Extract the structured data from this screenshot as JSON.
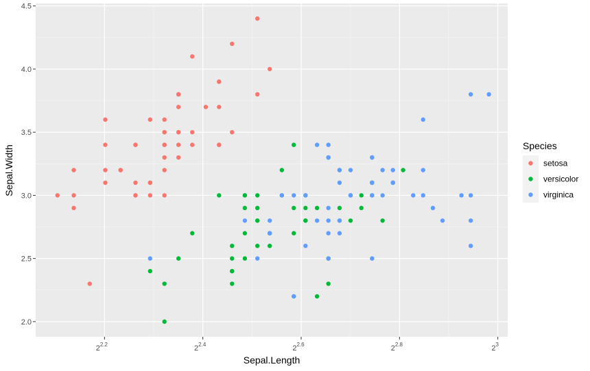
{
  "chart_data": {
    "type": "scatter",
    "title": "",
    "xlabel": "Sepal.Length",
    "ylabel": "Sepal.Width",
    "x_scale": "log2",
    "x_tick_labels": [
      {
        "base": "2",
        "exp": "2.2",
        "value": 2.2
      },
      {
        "base": "2",
        "exp": "2.4",
        "value": 2.4
      },
      {
        "base": "2",
        "exp": "2.6",
        "value": 2.6
      },
      {
        "base": "2",
        "exp": "2.8",
        "value": 2.8
      },
      {
        "base": "2",
        "exp": "3",
        "value": 3.0
      }
    ],
    "xlim_log2": [
      2.06,
      3.02
    ],
    "y_ticks": [
      "2.0",
      "2.5",
      "3.0",
      "3.5",
      "4.0",
      "4.5"
    ],
    "ylim": [
      1.88,
      4.52
    ],
    "grid": true,
    "legend": {
      "title": "Species",
      "position": "right"
    },
    "series": [
      {
        "name": "setosa",
        "color": "#F8766D",
        "points": [
          [
            5.1,
            3.5
          ],
          [
            4.9,
            3.0
          ],
          [
            4.7,
            3.2
          ],
          [
            4.6,
            3.1
          ],
          [
            5.0,
            3.6
          ],
          [
            5.4,
            3.9
          ],
          [
            4.6,
            3.4
          ],
          [
            5.0,
            3.4
          ],
          [
            4.4,
            2.9
          ],
          [
            4.9,
            3.1
          ],
          [
            5.4,
            3.7
          ],
          [
            4.8,
            3.4
          ],
          [
            4.8,
            3.0
          ],
          [
            4.3,
            3.0
          ],
          [
            5.8,
            4.0
          ],
          [
            5.7,
            4.4
          ],
          [
            5.4,
            3.9
          ],
          [
            5.1,
            3.5
          ],
          [
            5.7,
            3.8
          ],
          [
            5.1,
            3.8
          ],
          [
            5.4,
            3.4
          ],
          [
            5.1,
            3.7
          ],
          [
            4.6,
            3.6
          ],
          [
            5.1,
            3.3
          ],
          [
            4.8,
            3.4
          ],
          [
            5.0,
            3.0
          ],
          [
            5.0,
            3.4
          ],
          [
            5.2,
            3.5
          ],
          [
            5.2,
            3.4
          ],
          [
            4.7,
            3.2
          ],
          [
            4.8,
            3.1
          ],
          [
            5.4,
            3.4
          ],
          [
            5.2,
            4.1
          ],
          [
            5.5,
            4.2
          ],
          [
            4.9,
            3.1
          ],
          [
            5.0,
            3.2
          ],
          [
            5.5,
            3.5
          ],
          [
            4.9,
            3.6
          ],
          [
            4.4,
            3.0
          ],
          [
            5.1,
            3.4
          ],
          [
            5.0,
            3.5
          ],
          [
            4.5,
            2.3
          ],
          [
            4.4,
            3.2
          ],
          [
            5.0,
            3.5
          ],
          [
            5.1,
            3.8
          ],
          [
            4.8,
            3.0
          ],
          [
            5.1,
            3.8
          ],
          [
            4.6,
            3.2
          ],
          [
            5.3,
            3.7
          ],
          [
            5.0,
            3.3
          ]
        ]
      },
      {
        "name": "versicolor",
        "color": "#00BA38",
        "points": [
          [
            7.0,
            3.2
          ],
          [
            6.4,
            3.2
          ],
          [
            6.9,
            3.1
          ],
          [
            5.5,
            2.3
          ],
          [
            6.5,
            2.8
          ],
          [
            5.7,
            2.8
          ],
          [
            6.3,
            3.3
          ],
          [
            4.9,
            2.4
          ],
          [
            6.6,
            2.9
          ],
          [
            5.2,
            2.7
          ],
          [
            5.0,
            2.0
          ],
          [
            5.9,
            3.0
          ],
          [
            6.0,
            2.2
          ],
          [
            6.1,
            2.9
          ],
          [
            5.6,
            2.9
          ],
          [
            6.7,
            3.1
          ],
          [
            5.6,
            3.0
          ],
          [
            5.8,
            2.7
          ],
          [
            6.2,
            2.2
          ],
          [
            5.6,
            2.5
          ],
          [
            5.9,
            3.2
          ],
          [
            6.1,
            2.8
          ],
          [
            6.3,
            2.5
          ],
          [
            6.1,
            2.8
          ],
          [
            6.4,
            2.9
          ],
          [
            6.6,
            3.0
          ],
          [
            6.8,
            2.8
          ],
          [
            6.7,
            3.0
          ],
          [
            6.0,
            2.9
          ],
          [
            5.7,
            2.6
          ],
          [
            5.5,
            2.4
          ],
          [
            5.5,
            2.4
          ],
          [
            5.8,
            2.7
          ],
          [
            6.0,
            2.7
          ],
          [
            5.4,
            3.0
          ],
          [
            6.0,
            3.4
          ],
          [
            6.7,
            3.1
          ],
          [
            6.3,
            2.3
          ],
          [
            5.6,
            3.0
          ],
          [
            5.5,
            2.5
          ],
          [
            5.5,
            2.6
          ],
          [
            6.1,
            3.0
          ],
          [
            5.8,
            2.6
          ],
          [
            5.0,
            2.3
          ],
          [
            5.6,
            2.7
          ],
          [
            5.7,
            3.0
          ],
          [
            5.7,
            2.9
          ],
          [
            6.2,
            2.9
          ],
          [
            5.1,
            2.5
          ],
          [
            5.7,
            2.8
          ]
        ]
      },
      {
        "name": "virginica",
        "color": "#619CFF",
        "points": [
          [
            6.3,
            3.3
          ],
          [
            5.8,
            2.7
          ],
          [
            7.1,
            3.0
          ],
          [
            6.3,
            2.9
          ],
          [
            6.5,
            3.0
          ],
          [
            7.6,
            3.0
          ],
          [
            4.9,
            2.5
          ],
          [
            7.3,
            2.9
          ],
          [
            6.7,
            2.5
          ],
          [
            7.2,
            3.6
          ],
          [
            6.5,
            3.2
          ],
          [
            6.4,
            2.7
          ],
          [
            6.8,
            3.0
          ],
          [
            5.7,
            2.5
          ],
          [
            5.8,
            2.8
          ],
          [
            6.4,
            3.2
          ],
          [
            6.5,
            3.0
          ],
          [
            7.7,
            3.8
          ],
          [
            7.7,
            2.6
          ],
          [
            6.0,
            2.2
          ],
          [
            6.9,
            3.2
          ],
          [
            5.6,
            2.8
          ],
          [
            7.7,
            2.8
          ],
          [
            6.3,
            2.7
          ],
          [
            6.7,
            3.3
          ],
          [
            7.2,
            3.2
          ],
          [
            6.2,
            2.8
          ],
          [
            6.1,
            3.0
          ],
          [
            6.4,
            2.8
          ],
          [
            7.2,
            3.0
          ],
          [
            7.4,
            2.8
          ],
          [
            7.9,
            3.8
          ],
          [
            6.4,
            2.8
          ],
          [
            6.3,
            2.8
          ],
          [
            6.1,
            2.6
          ],
          [
            7.7,
            3.0
          ],
          [
            6.3,
            3.4
          ],
          [
            6.4,
            3.1
          ],
          [
            6.0,
            3.0
          ],
          [
            6.9,
            3.1
          ],
          [
            6.7,
            3.1
          ],
          [
            6.9,
            3.1
          ],
          [
            5.8,
            2.7
          ],
          [
            6.8,
            3.2
          ],
          [
            6.7,
            3.3
          ],
          [
            6.7,
            3.0
          ],
          [
            6.3,
            2.5
          ],
          [
            6.5,
            3.0
          ],
          [
            6.2,
            3.4
          ],
          [
            5.9,
            3.0
          ]
        ]
      }
    ]
  }
}
